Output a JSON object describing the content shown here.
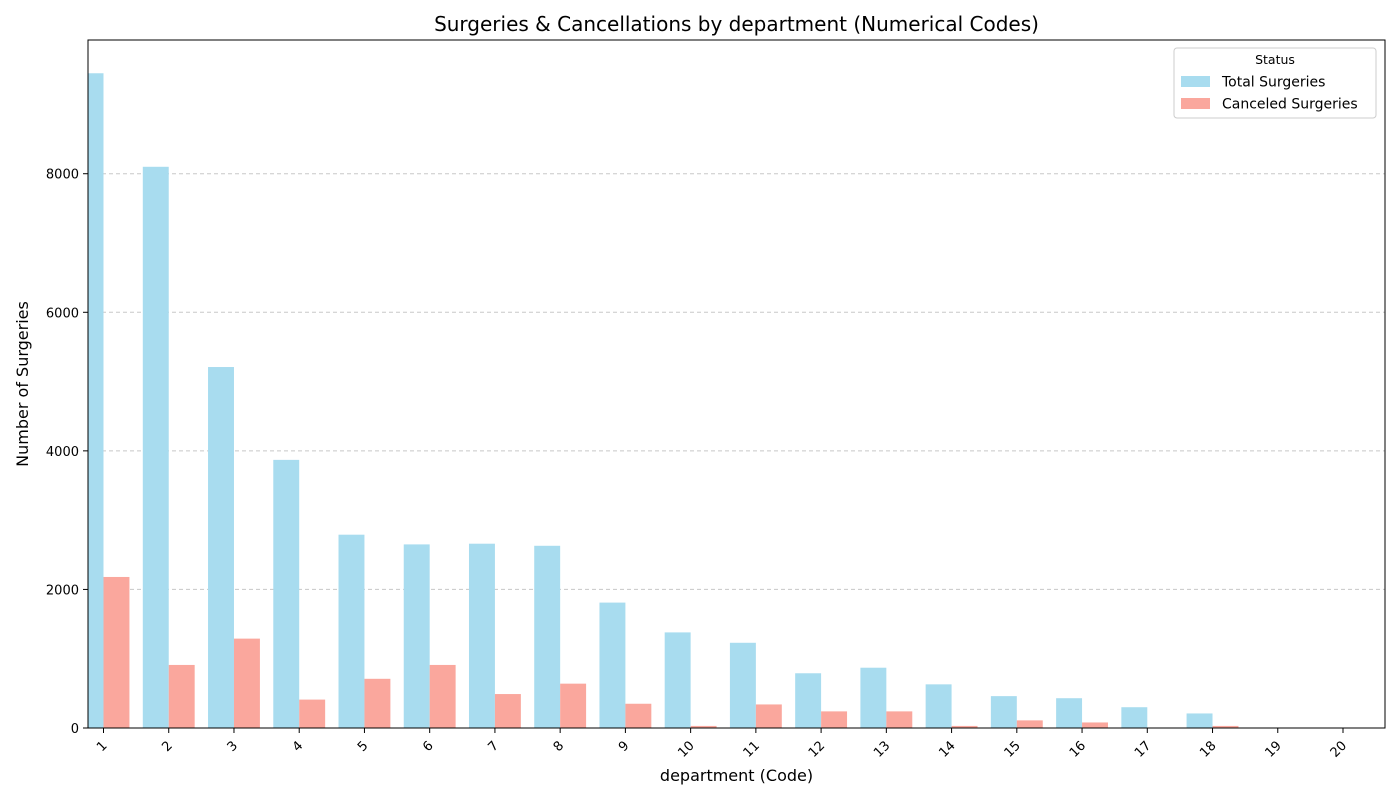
{
  "chart_data": {
    "type": "bar",
    "title": "Surgeries & Cancellations by department (Numerical Codes)",
    "xlabel": "department (Code)",
    "ylabel": "Number of Surgeries",
    "categories": [
      "1",
      "2",
      "3",
      "4",
      "5",
      "6",
      "7",
      "8",
      "9",
      "10",
      "11",
      "12",
      "13",
      "14",
      "15",
      "16",
      "17",
      "18",
      "19",
      "20"
    ],
    "series": [
      {
        "name": "Total Surgeries",
        "color": "#a8dcef",
        "values": [
          9450,
          8100,
          5210,
          3870,
          2790,
          2650,
          2660,
          2630,
          1810,
          1380,
          1230,
          790,
          870,
          630,
          460,
          430,
          300,
          210,
          0,
          0
        ]
      },
      {
        "name": "Canceled Surgeries",
        "color": "#faa79d",
        "values": [
          2180,
          910,
          1290,
          410,
          710,
          910,
          490,
          640,
          350,
          30,
          340,
          240,
          240,
          30,
          110,
          80,
          0,
          30,
          0,
          0
        ]
      }
    ],
    "ylim": [
      0,
      9930
    ],
    "yticks": [
      0,
      2000,
      4000,
      6000,
      8000
    ],
    "grid": "y-dashed",
    "legend": {
      "title": "Status",
      "placement": "top-right"
    }
  }
}
